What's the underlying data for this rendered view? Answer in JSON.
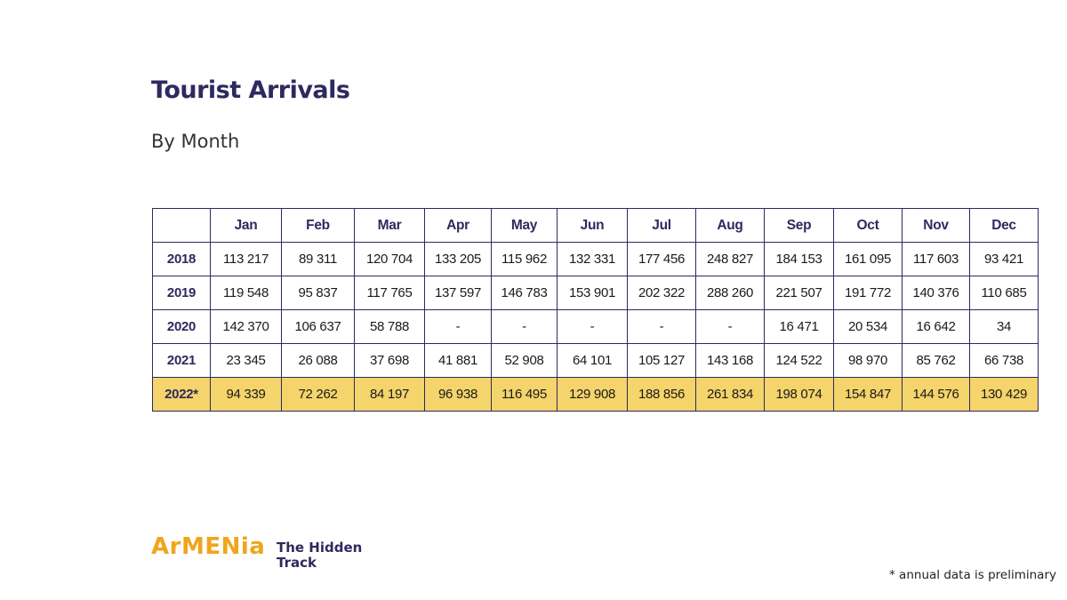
{
  "header": {
    "title": "Tourist Arrivals",
    "subtitle": "By Month"
  },
  "colors": {
    "accent": "#2e2a5e",
    "highlight": "#f4d46b",
    "brand_orange": "#f0a51c"
  },
  "chart_data": {
    "type": "table",
    "columns": [
      "",
      "Jan",
      "Feb",
      "Mar",
      "Apr",
      "May",
      "Jun",
      "Jul",
      "Aug",
      "Sep",
      "Oct",
      "Nov",
      "Dec"
    ],
    "rows": [
      {
        "label": "2018",
        "values": [
          "113 217",
          "89 311",
          "120 704",
          "133 205",
          "115 962",
          "132 331",
          "177 456",
          "248 827",
          "184 153",
          "161 095",
          "117 603",
          "93 421"
        ]
      },
      {
        "label": "2019",
        "values": [
          "119 548",
          "95 837",
          "117 765",
          "137 597",
          "146 783",
          "153 901",
          "202 322",
          "288 260",
          "221 507",
          "191 772",
          "140 376",
          "110 685"
        ]
      },
      {
        "label": "2020",
        "values": [
          "142 370",
          "106 637",
          "58 788",
          "-",
          "-",
          "-",
          "-",
          "-",
          "16 471",
          "20 534",
          "16 642",
          "34"
        ]
      },
      {
        "label": "2021",
        "values": [
          "23 345",
          "26 088",
          "37 698",
          "41 881",
          "52 908",
          "64 101",
          "105 127",
          "143 168",
          "124 522",
          "98 970",
          "85 762",
          "66 738"
        ]
      },
      {
        "label": "2022*",
        "values": [
          "94 339",
          "72 262",
          "84 197",
          "96 938",
          "116 495",
          "129 908",
          "188 856",
          "261 834",
          "198 074",
          "154 847",
          "144 576",
          "130 429"
        ],
        "highlight": true
      }
    ]
  },
  "branding": {
    "logo_text": "ArMENia",
    "tagline": "The Hidden Track"
  },
  "footnote": "* annual data is preliminary"
}
